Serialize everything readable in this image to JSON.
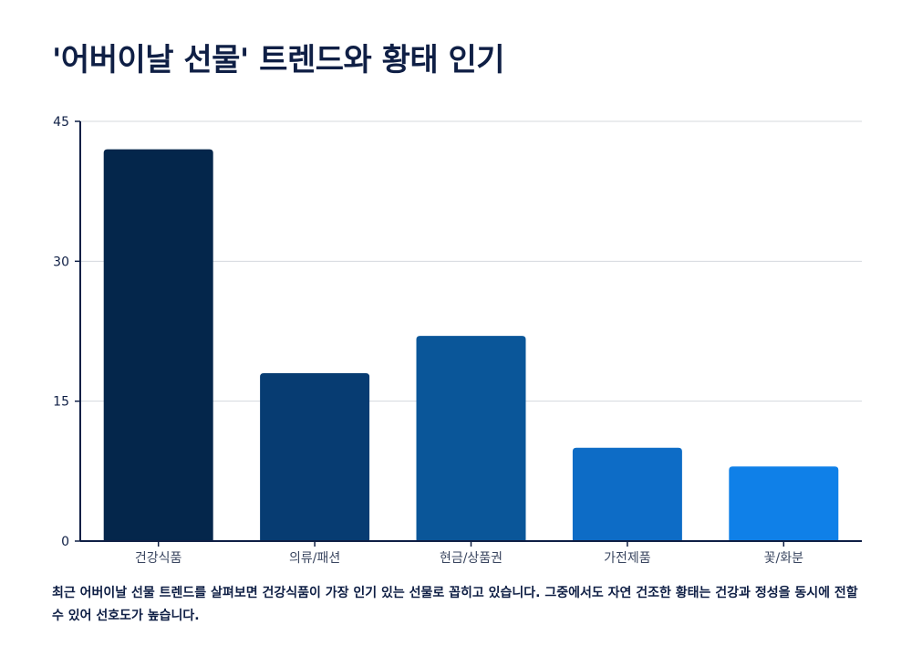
{
  "title": "'어버이날 선물' 트렌드와 황태 인기",
  "caption": "최근 어버이날 선물 트렌드를 살펴보면 건강식품이 가장 인기 있는 선물로 꼽히고 있습니다. 그중에서도 자연 건조한 황태는 건강과 정성을 동시에 전할 수 있어 선호도가 높습니다.",
  "chart_data": {
    "type": "bar",
    "categories": [
      "건강식품",
      "의류/패션",
      "현금/상품권",
      "가전제품",
      "꽃/화분"
    ],
    "values": [
      42,
      18,
      22,
      10,
      8
    ],
    "colors": [
      "#04264b",
      "#073c72",
      "#0a5699",
      "#0d6cc6",
      "#0f80e8"
    ],
    "xlabel": "",
    "ylabel": "",
    "ylim": [
      0,
      45
    ],
    "yticks": [
      0,
      15,
      30,
      45
    ],
    "grid": true,
    "axis_color": "#0f1f45",
    "grid_color": "#d5d8de"
  }
}
